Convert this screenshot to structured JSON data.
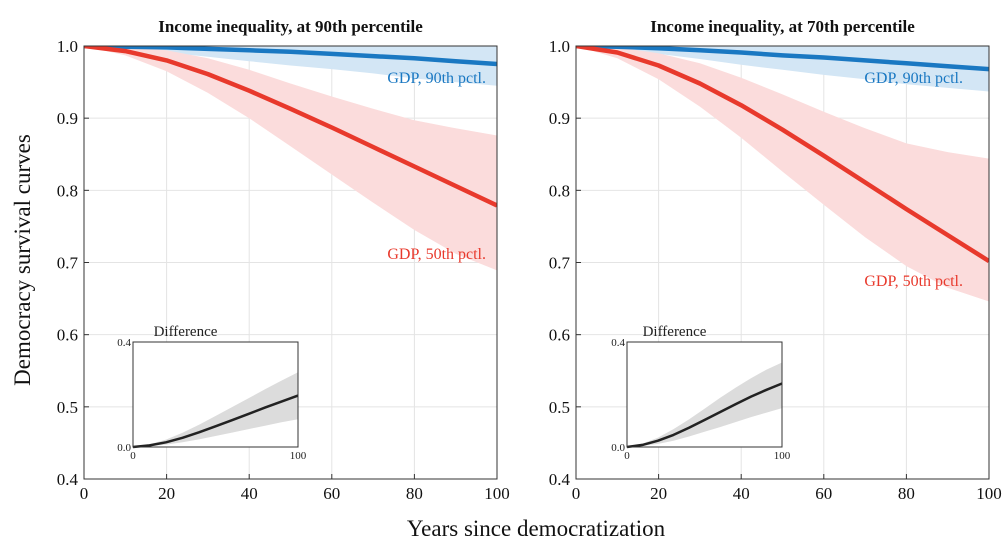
{
  "figure": {
    "ylabel": "Democracy survival curves",
    "xlabel": "Years since democratization"
  },
  "chart_data": [
    {
      "type": "line",
      "title": "Income inequality, at 90th percentile",
      "xlim": [
        0,
        100
      ],
      "ylim": [
        0.4,
        1.0
      ],
      "xticks": [
        "0",
        "20",
        "40",
        "60",
        "80",
        "100"
      ],
      "yticks": [
        "0.4",
        "0.5",
        "0.6",
        "0.7",
        "0.8",
        "0.9",
        "1.0"
      ],
      "grid": true,
      "x": [
        0,
        10,
        20,
        30,
        40,
        50,
        60,
        70,
        80,
        90,
        100
      ],
      "series": [
        {
          "name": "GDP, 90th pctl.",
          "color": "#1a78c2",
          "band_color": "#d3e6f5",
          "values": [
            1.0,
            0.999,
            0.998,
            0.996,
            0.994,
            0.992,
            0.989,
            0.986,
            0.983,
            0.979,
            0.975
          ],
          "lower": [
            1.0,
            0.996,
            0.991,
            0.985,
            0.979,
            0.973,
            0.968,
            0.962,
            0.955,
            0.95,
            0.945
          ],
          "upper": [
            1.0,
            1.0,
            1.0,
            1.0,
            1.0,
            1.0,
            1.0,
            1.0,
            1.0,
            1.0,
            1.0
          ]
        },
        {
          "name": "GDP, 50th pctl.",
          "color": "#e8392c",
          "band_color": "#fbdcdc",
          "values": [
            1.0,
            0.993,
            0.98,
            0.961,
            0.938,
            0.913,
            0.887,
            0.86,
            0.833,
            0.806,
            0.779
          ],
          "lower": [
            1.0,
            0.987,
            0.965,
            0.935,
            0.9,
            0.861,
            0.822,
            0.783,
            0.745,
            0.712,
            0.689
          ],
          "upper": [
            1.0,
            0.999,
            0.994,
            0.983,
            0.967,
            0.948,
            0.93,
            0.913,
            0.897,
            0.886,
            0.876
          ]
        }
      ],
      "inset": {
        "title": "Difference",
        "xticks": [
          "0",
          "100"
        ],
        "yticks": [
          "0.0",
          "0.4"
        ],
        "xlim": [
          0,
          100
        ],
        "ylim": [
          0,
          0.4
        ],
        "x": [
          0,
          10,
          20,
          30,
          40,
          50,
          60,
          70,
          80,
          90,
          100
        ],
        "values": [
          0.0,
          0.006,
          0.018,
          0.035,
          0.056,
          0.079,
          0.102,
          0.126,
          0.15,
          0.173,
          0.196
        ],
        "lower": [
          0.0,
          0.003,
          0.009,
          0.018,
          0.029,
          0.042,
          0.055,
          0.068,
          0.081,
          0.094,
          0.106
        ],
        "upper": [
          0.0,
          0.01,
          0.028,
          0.054,
          0.085,
          0.118,
          0.152,
          0.186,
          0.22,
          0.253,
          0.285
        ]
      }
    },
    {
      "type": "line",
      "title": "Income inequality, at 70th percentile",
      "xlim": [
        0,
        100
      ],
      "ylim": [
        0.4,
        1.0
      ],
      "xticks": [
        "0",
        "20",
        "40",
        "60",
        "80",
        "100"
      ],
      "yticks": [
        "0.4",
        "0.5",
        "0.6",
        "0.7",
        "0.8",
        "0.9",
        "1.0"
      ],
      "grid": true,
      "x": [
        0,
        10,
        20,
        30,
        40,
        50,
        60,
        70,
        80,
        90,
        100
      ],
      "series": [
        {
          "name": "GDP, 90th pctl.",
          "color": "#1a78c2",
          "band_color": "#d3e6f5",
          "values": [
            1.0,
            0.999,
            0.997,
            0.994,
            0.991,
            0.987,
            0.984,
            0.98,
            0.976,
            0.972,
            0.968
          ],
          "lower": [
            1.0,
            0.995,
            0.989,
            0.982,
            0.974,
            0.967,
            0.96,
            0.954,
            0.947,
            0.942,
            0.937
          ],
          "upper": [
            1.0,
            1.0,
            1.0,
            1.0,
            1.0,
            1.0,
            1.0,
            1.0,
            1.0,
            1.0,
            1.0
          ]
        },
        {
          "name": "GDP, 50th pctl.",
          "color": "#e8392c",
          "band_color": "#fbdcdc",
          "values": [
            1.0,
            0.991,
            0.973,
            0.948,
            0.918,
            0.884,
            0.848,
            0.811,
            0.774,
            0.738,
            0.702
          ],
          "lower": [
            1.0,
            0.983,
            0.954,
            0.916,
            0.873,
            0.826,
            0.78,
            0.735,
            0.695,
            0.665,
            0.646
          ],
          "upper": [
            1.0,
            0.998,
            0.99,
            0.976,
            0.956,
            0.933,
            0.909,
            0.886,
            0.865,
            0.853,
            0.844
          ]
        }
      ],
      "inset": {
        "title": "Difference",
        "xticks": [
          "0",
          "100"
        ],
        "yticks": [
          "0.0",
          "0.4"
        ],
        "xlim": [
          0,
          100
        ],
        "ylim": [
          0,
          0.4
        ],
        "x": [
          0,
          10,
          20,
          30,
          40,
          50,
          60,
          70,
          80,
          90,
          100
        ],
        "values": [
          0.0,
          0.008,
          0.024,
          0.046,
          0.073,
          0.103,
          0.133,
          0.163,
          0.192,
          0.218,
          0.242
        ],
        "lower": [
          0.0,
          0.004,
          0.012,
          0.024,
          0.04,
          0.058,
          0.076,
          0.095,
          0.114,
          0.131,
          0.148
        ],
        "upper": [
          0.0,
          0.013,
          0.036,
          0.068,
          0.105,
          0.146,
          0.187,
          0.226,
          0.262,
          0.295,
          0.322
        ]
      }
    }
  ]
}
